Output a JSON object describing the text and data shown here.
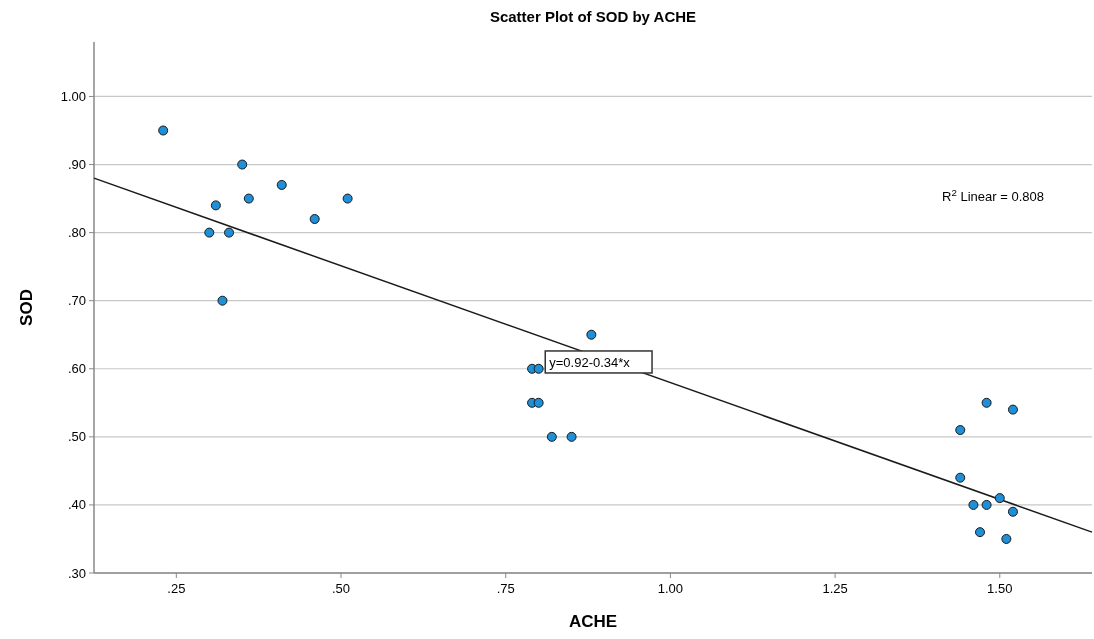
{
  "chart_data": {
    "type": "scatter",
    "title": "Scatter Plot of SOD by ACHE",
    "xlabel": "ACHE",
    "ylabel": "SOD",
    "xlim": [
      0.125,
      1.64
    ],
    "ylim": [
      0.3,
      1.08
    ],
    "xticks": [
      {
        "value": 0.25,
        "label": ".25"
      },
      {
        "value": 0.5,
        "label": ".50"
      },
      {
        "value": 0.75,
        "label": ".75"
      },
      {
        "value": 1,
        "label": "1.00"
      },
      {
        "value": 1.25,
        "label": "1.25"
      },
      {
        "value": 1.5,
        "label": "1.50"
      }
    ],
    "yticks": [
      {
        "value": 0.3,
        "label": ".30"
      },
      {
        "value": 0.4,
        "label": ".40"
      },
      {
        "value": 0.5,
        "label": ".50"
      },
      {
        "value": 0.6,
        "label": ".60"
      },
      {
        "value": 0.7,
        "label": ".70"
      },
      {
        "value": 0.8,
        "label": ".80"
      },
      {
        "value": 0.9,
        "label": ".90"
      },
      {
        "value": 1,
        "label": "1.00"
      }
    ],
    "grid": "y",
    "marker": "circle",
    "series": [
      {
        "color": "#1f8fd8",
        "x": [
          0.23,
          0.35,
          0.31,
          0.36,
          0.41,
          0.3,
          0.33,
          0.46,
          0.51,
          0.32,
          0.88,
          0.79,
          0.8,
          0.79,
          0.8,
          0.82,
          0.85,
          1.44,
          1.48,
          1.52,
          1.44,
          1.5,
          1.46,
          1.48,
          1.52,
          1.47,
          1.51
        ],
        "values": [
          0.95,
          0.9,
          0.84,
          0.85,
          0.87,
          0.8,
          0.8,
          0.82,
          0.85,
          0.7,
          0.65,
          0.6,
          0.6,
          0.55,
          0.55,
          0.5,
          0.5,
          0.51,
          0.55,
          0.54,
          0.44,
          0.41,
          0.4,
          0.4,
          0.39,
          0.36,
          0.35
        ]
      },
      {
        "type": "line",
        "marker": "none",
        "color": "#1a1a1a",
        "x": [
          0.125,
          1.64
        ],
        "values": [
          0.88,
          0.36
        ]
      }
    ],
    "annotations": [
      {
        "text": "y=0.92-0.34*x",
        "x": 0.81,
        "y": 0.61
      },
      "R$^{2}$ Linear = 0.808"
    ]
  }
}
